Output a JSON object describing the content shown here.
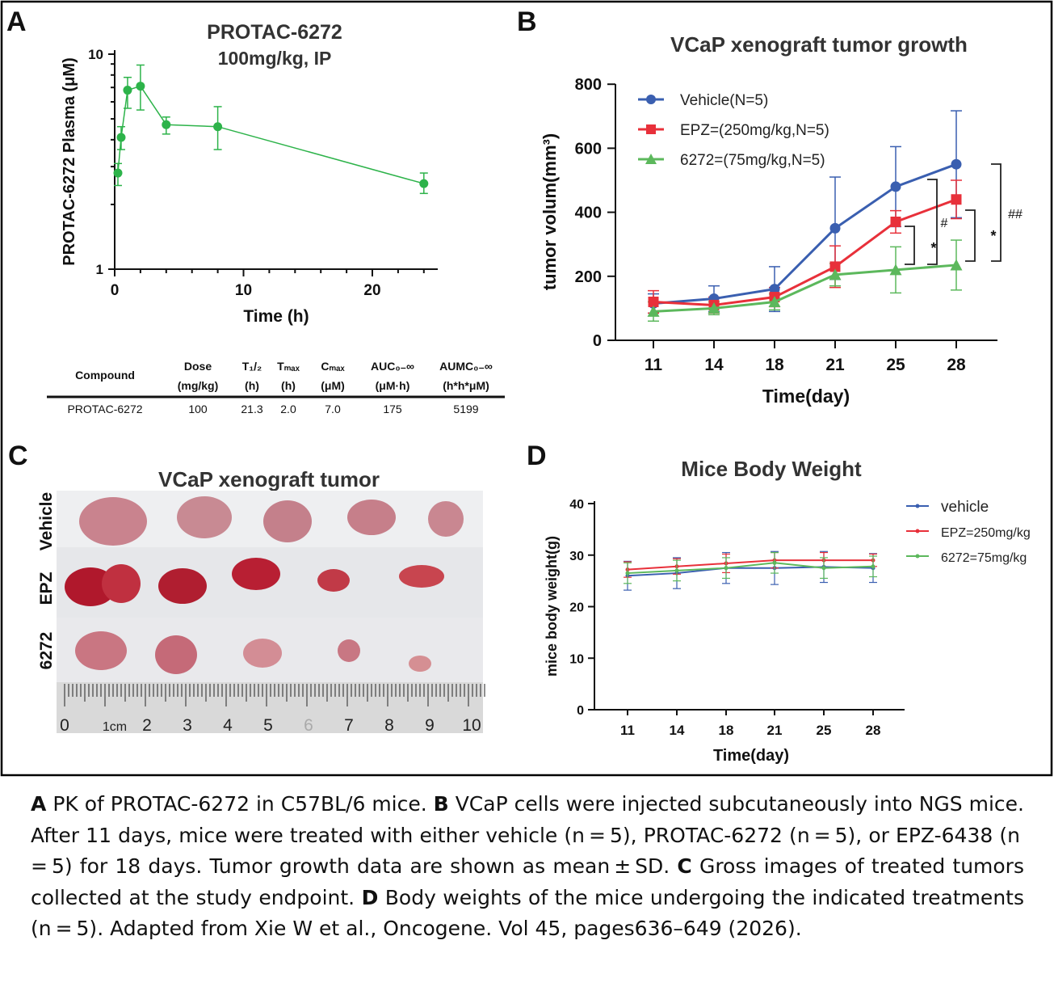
{
  "panel_labels": [
    "A",
    "B",
    "C",
    "D"
  ],
  "chart_data": [
    {
      "panel": "A",
      "type": "line",
      "title": "PROTAC-6272",
      "subtitle": "100mg/kg, IP",
      "xlabel": "Time (h)",
      "ylabel": "PROTAC-6272 Plasma (μM)",
      "yscale": "log",
      "xlim": [
        0,
        25
      ],
      "ylim": [
        1,
        10
      ],
      "xticks": [
        0,
        10,
        20
      ],
      "yticks": [
        1,
        10
      ],
      "color": "#2db34a",
      "series": [
        {
          "x": [
            0.25,
            0.5,
            1,
            2,
            4,
            8,
            24
          ],
          "y": [
            2.8,
            4.1,
            6.8,
            7.1,
            4.7,
            4.6,
            2.5
          ],
          "err_low": [
            2.45,
            3.6,
            5.6,
            5.5,
            4.25,
            3.6,
            2.25
          ],
          "err_high": [
            3.1,
            4.6,
            7.8,
            8.9,
            5.1,
            5.7,
            2.8
          ]
        }
      ]
    },
    {
      "panel": "B",
      "type": "line",
      "title": "VCaP xenograft tumor growth",
      "xlabel": "Time(day)",
      "ylabel": "tumor volum(mm³)",
      "categories": [
        "11",
        "14",
        "18",
        "21",
        "25",
        "28"
      ],
      "ylim": [
        0,
        800
      ],
      "yticks": [
        0,
        200,
        400,
        600,
        800
      ],
      "legend": "top-left",
      "series": [
        {
          "name": "Vehicle(N=5)",
          "color": "#3a5fb0",
          "marker": "circle",
          "values": [
            115,
            130,
            160,
            350,
            480,
            550
          ],
          "sd": [
            30,
            40,
            70,
            160,
            125,
            167
          ]
        },
        {
          "name": "EPZ=(250mg/kg,N=5)",
          "color": "#e8303a",
          "marker": "square",
          "values": [
            120,
            110,
            135,
            230,
            370,
            440
          ],
          "sd": [
            35,
            25,
            30,
            65,
            35,
            60
          ]
        },
        {
          "name": "6272=(75mg/kg,N=5)",
          "color": "#5cb85c",
          "marker": "triangle",
          "values": [
            90,
            100,
            120,
            205,
            220,
            235
          ],
          "sd": [
            30,
            20,
            25,
            35,
            72,
            78
          ]
        }
      ],
      "annotations": [
        "*",
        "#",
        "*",
        "##"
      ]
    },
    {
      "panel": "D",
      "type": "line",
      "title": "Mice Body Weight",
      "xlabel": "Time(day)",
      "ylabel": "mice body weight(g)",
      "categories": [
        "11",
        "14",
        "18",
        "21",
        "25",
        "28"
      ],
      "ylim": [
        0,
        40
      ],
      "yticks": [
        0,
        10,
        20,
        30,
        40
      ],
      "legend": "right",
      "series": [
        {
          "name": "vehicle",
          "color": "#3a5fb0",
          "values": [
            26,
            26.5,
            27.5,
            27.5,
            27.7,
            27.5
          ],
          "sd": [
            2.8,
            3,
            3,
            3.2,
            3,
            2.8
          ]
        },
        {
          "name": "EPZ=250mg/kg",
          "color": "#e8303a",
          "values": [
            27.2,
            27.8,
            28.4,
            29,
            29,
            29
          ],
          "sd": [
            1.5,
            1.5,
            1.8,
            1.5,
            1.5,
            1.2
          ]
        },
        {
          "name": "6272=75mg/kg",
          "color": "#5cb85c",
          "values": [
            26.5,
            27,
            27.5,
            28.5,
            27.5,
            27.8
          ],
          "sd": [
            2,
            2,
            2,
            2,
            2,
            2
          ]
        }
      ]
    }
  ],
  "pk_table": {
    "headers": [
      [
        "Compound",
        ""
      ],
      [
        "Dose",
        "(mg/kg)"
      ],
      [
        "T₁/₂",
        "(h)"
      ],
      [
        "Tₘₐₓ",
        "(h)"
      ],
      [
        "Cₘₐₓ",
        "(μM)"
      ],
      [
        "AUC₀₋∞",
        "(μM·h)"
      ],
      [
        "AUMC₀₋∞",
        "(h*h*μM)"
      ]
    ],
    "row": [
      "PROTAC-6272",
      "100",
      "21.3",
      "2.0",
      "7.0",
      "175",
      "5199"
    ]
  },
  "photo": {
    "title": "VCaP xenograft tumor",
    "rows": [
      "Vehicle",
      "EPZ",
      "6272"
    ],
    "ruler_labels": [
      "0",
      "1cm",
      "2",
      "3",
      "4",
      "5",
      "6",
      "7",
      "8",
      "9",
      "10"
    ]
  },
  "caption": {
    "a_label": "A",
    "a_text": " PK of PROTAC-6272 in C57BL/6 mice. ",
    "b_label": "B",
    "b_text": " VCaP cells were injected subcutaneously into NGS mice. After 11 days, mice were treated with either vehicle (n = 5), PROTAC-6272 (n = 5), or EPZ-6438 (n = 5) for 18 days. Tumor growth data are shown as mean ± SD. ",
    "c_label": "C",
    "c_text": " Gross images of treated tumors collected at the study endpoint. ",
    "d_label": "D",
    "d_text": " Body weights of the mice undergoing the indicated treatments (n = 5). Adapted from Xie W et al., Oncogene. Vol 45, pages636–649 (2026)."
  }
}
